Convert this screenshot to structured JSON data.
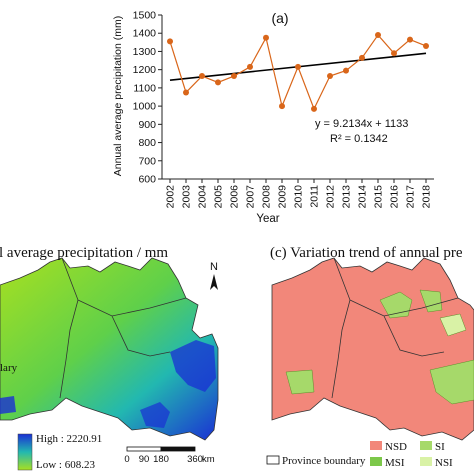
{
  "chart_data": {
    "type": "line",
    "panel_label": "(a)",
    "x": [
      2002,
      2003,
      2004,
      2005,
      2006,
      2007,
      2008,
      2009,
      2010,
      2011,
      2012,
      2013,
      2014,
      2015,
      2016,
      2017,
      2018
    ],
    "series": [
      {
        "values": [
          1355,
          1075,
          1165,
          1130,
          1165,
          1215,
          1375,
          1000,
          1215,
          985,
          1165,
          1195,
          1265,
          1390,
          1290,
          1365,
          1330
        ]
      }
    ],
    "trendline": {
      "slope": 9.2134,
      "intercept": 1133
    },
    "equation": "y = 9.2134x + 1133",
    "r_squared": "R² = 0.1342",
    "xlabel": "Year",
    "ylabel": "Annual average precipitation (mm)",
    "ylim": [
      600,
      1500
    ],
    "yticks": [
      600,
      700,
      800,
      900,
      1000,
      1100,
      1200,
      1300,
      1400,
      1500
    ],
    "colors": {
      "line": "#d9661a",
      "marker": "#d9661a",
      "trend": "#000000"
    }
  },
  "map_b": {
    "title": "l average precipitation / mm",
    "legend_high": "High : 2220.91",
    "legend_low": "Low : 608.23",
    "partial_legend_text": "lary",
    "scale_ticks": [
      "0",
      "90",
      "180",
      "360"
    ],
    "scale_unit": "km",
    "north_label": "N",
    "colors": {
      "high": "#1a2fd4",
      "mid": "#22b8b0",
      "low": "#a8e020"
    }
  },
  "map_c": {
    "title": "(c) Variation trend of annual pre",
    "province_boundary_label": "Province boundary",
    "legend": [
      {
        "label": "NSD",
        "color": "#f2877a"
      },
      {
        "label": "SI",
        "color": "#a6d96a"
      },
      {
        "label": "MSI",
        "color": "#7cc84a"
      },
      {
        "label": "NSI",
        "color": "#d9f2a6"
      }
    ]
  }
}
